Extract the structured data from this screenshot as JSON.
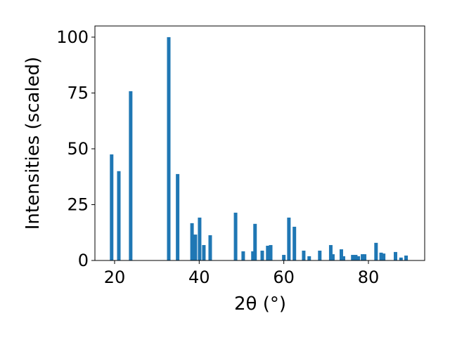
{
  "chart_data": {
    "type": "bar",
    "xlabel": "2θ (°)",
    "ylabel": "Intensities (scaled)",
    "x": [
      19.3,
      21.0,
      23.8,
      32.8,
      34.9,
      38.3,
      39.1,
      40.1,
      41.1,
      42.6,
      48.6,
      50.4,
      52.7,
      53.2,
      54.9,
      56.2,
      56.9,
      60.0,
      61.2,
      62.5,
      64.7,
      66.0,
      68.5,
      71.1,
      71.6,
      73.6,
      74.1,
      76.3,
      77.0,
      77.6,
      78.6,
      79.1,
      81.8,
      83.0,
      83.6,
      86.4,
      87.7,
      88.9
    ],
    "values": [
      47.5,
      40,
      75.8,
      100,
      38.7,
      16.7,
      11.6,
      19.2,
      6.9,
      11.3,
      21.4,
      4.1,
      4.1,
      16.4,
      4.4,
      6.6,
      6.9,
      2.5,
      19.2,
      15.1,
      4.4,
      1.9,
      4.4,
      6.9,
      2.8,
      5.0,
      1.9,
      2.5,
      2.5,
      1.9,
      2.8,
      2.8,
      7.9,
      3.5,
      3.1,
      3.8,
      1.3,
      2.2
    ],
    "color": "#1f77b4",
    "xlim": [
      15.35,
      93.3
    ],
    "ylim": [
      0,
      105
    ],
    "xticks": [
      20,
      40,
      60,
      80
    ],
    "yticks": [
      0,
      25,
      50,
      75,
      100
    ],
    "grid": false
  }
}
